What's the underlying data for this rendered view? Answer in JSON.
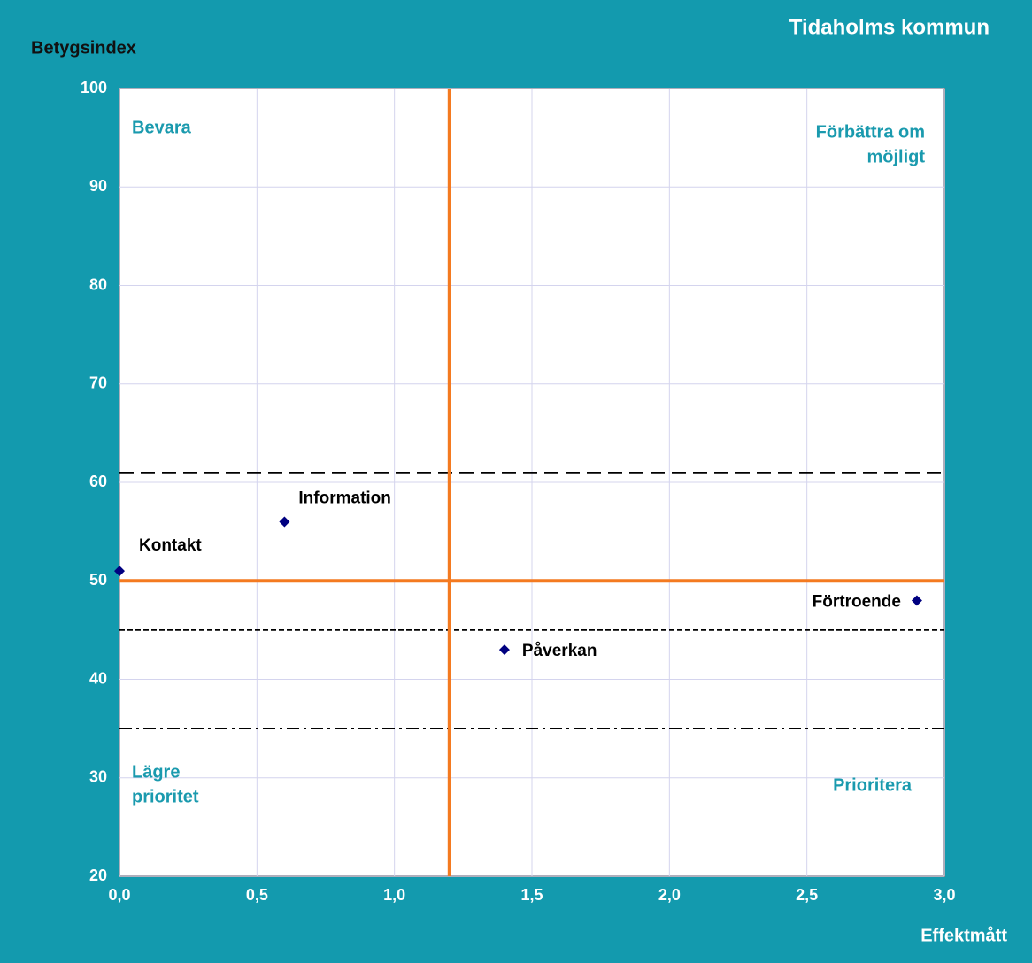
{
  "chart_data": {
    "type": "scatter",
    "title": "Tidaholms kommun",
    "ylabel": "Betygsindex",
    "xlabel": "Effektmått",
    "x": [
      0,
      0.6,
      2.9,
      1.4
    ],
    "values": [
      51,
      56,
      48,
      43
    ],
    "point_labels": [
      "Kontakt",
      "Information",
      "Förtroende",
      "Påverkan"
    ],
    "color": "#000080",
    "xlim": [
      0,
      3
    ],
    "ylim": [
      20,
      100
    ],
    "xticks": [
      {
        "value": 0,
        "label": "0,0"
      },
      {
        "value": 0.5,
        "label": "0,5"
      },
      {
        "value": 1,
        "label": "1,0"
      },
      {
        "value": 1.5,
        "label": "1,5"
      },
      {
        "value": 2,
        "label": "2,0"
      },
      {
        "value": 2.5,
        "label": "2,5"
      },
      {
        "value": 3,
        "label": "3,0"
      }
    ],
    "yticks": [
      20,
      30,
      40,
      50,
      60,
      70,
      80,
      90,
      100
    ],
    "grid": true,
    "quadrant_x": 1.2,
    "quadrant_y": 50,
    "quadrant_color": "#f47a20",
    "reference_lines": [
      {
        "value": 61,
        "style": "long-dash"
      },
      {
        "value": 45,
        "style": "short-dash"
      },
      {
        "value": 35,
        "style": "dash-dot"
      }
    ],
    "quadrant_labels": {
      "top_left": [
        "Bevara"
      ],
      "top_right": [
        "Förbättra om",
        "möjligt"
      ],
      "bottom_left": [
        "Lägre",
        "prioritet"
      ],
      "bottom_right": [
        "Prioritera"
      ]
    }
  }
}
